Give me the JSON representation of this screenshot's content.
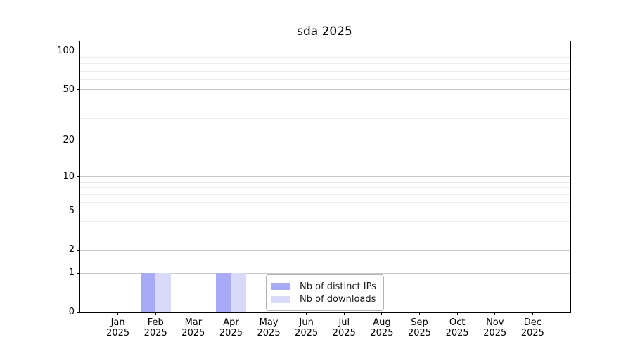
{
  "chart_data": {
    "type": "bar",
    "title": "sda 2025",
    "categories": [
      "Jan",
      "Feb",
      "Mar",
      "Apr",
      "May",
      "Jun",
      "Jul",
      "Aug",
      "Sep",
      "Oct",
      "Nov",
      "Dec"
    ],
    "x_year": "2025",
    "series": [
      {
        "name": "Nb of distinct IPs",
        "color": "#a9aaf6",
        "values": [
          0,
          1,
          0,
          1,
          0,
          0,
          0,
          0,
          0,
          0,
          0,
          0
        ]
      },
      {
        "name": "Nb of downloads",
        "color": "#d9daf9",
        "values": [
          0,
          1,
          0,
          1,
          0,
          0,
          0,
          0,
          0,
          0,
          0,
          0
        ]
      }
    ],
    "xlabel": "",
    "ylabel": "",
    "yscale": "log1p",
    "ylim": [
      0,
      119
    ],
    "yticks": [
      0,
      1,
      2,
      5,
      10,
      20,
      50,
      100
    ],
    "yticks_minor": [
      3,
      4,
      6,
      7,
      8,
      9,
      30,
      40,
      60,
      70,
      80,
      90
    ],
    "grid": "both",
    "legend_position": "lower center",
    "colors": {
      "grid_major": "#c8c8c8",
      "grid_major_top": "#b4b4b4",
      "grid_minor": "#ebebeb",
      "spine": "#000000"
    }
  }
}
